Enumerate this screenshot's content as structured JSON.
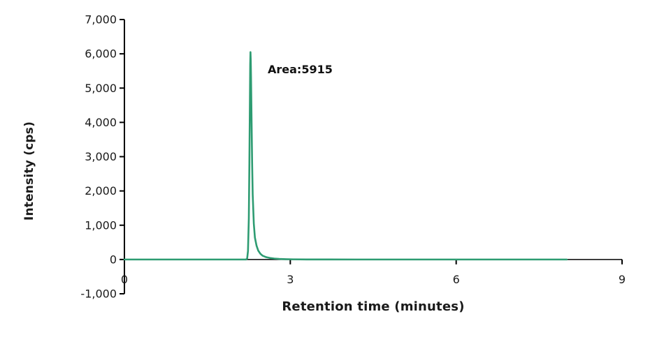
{
  "chart_data": {
    "type": "line",
    "title": "",
    "xlabel": "Retention time (minutes)",
    "ylabel": "Intensity (cps)",
    "xlim": [
      0,
      9
    ],
    "ylim": [
      -1000,
      7000
    ],
    "grid": false,
    "legend": null,
    "x_ticks": [
      0,
      3,
      6,
      9
    ],
    "x_tick_labels": [
      "0",
      "3",
      "6",
      "9"
    ],
    "y_ticks": [
      7000,
      6000,
      5000,
      4000,
      3000,
      2000,
      1000,
      0,
      -1000
    ],
    "y_tick_labels": [
      "7,000",
      "6,000",
      "5,000",
      "4,000",
      "3,000",
      "2,000",
      "1,000",
      "0",
      "-1,000"
    ],
    "axis_color": "#000000",
    "series": [
      {
        "name": "chromatogram-trace",
        "color": "#2E9C72",
        "x": [
          0,
          0.3,
          0.6,
          1.0,
          1.4,
          1.8,
          2.0,
          2.1,
          2.16,
          2.2,
          2.22,
          2.235,
          2.25,
          2.26,
          2.27,
          2.275,
          2.28,
          2.285,
          2.29,
          2.3,
          2.31,
          2.32,
          2.34,
          2.36,
          2.39,
          2.42,
          2.46,
          2.5,
          2.56,
          2.63,
          2.71,
          2.8,
          2.92,
          3.05,
          3.3,
          3.7,
          4.2,
          5.0,
          6.0,
          7.0,
          8.0
        ],
        "y": [
          0,
          0,
          0,
          0,
          0,
          0,
          0,
          0,
          0,
          0,
          30,
          250,
          1200,
          2800,
          4700,
          5700,
          6050,
          5800,
          5300,
          4000,
          2800,
          1900,
          1050,
          640,
          400,
          260,
          165,
          110,
          70,
          45,
          28,
          17,
          9,
          5,
          2,
          1,
          0,
          0,
          0,
          0,
          0
        ]
      }
    ],
    "peaks": [
      {
        "retention_time": 2.28,
        "apex_intensity_cps": 6050,
        "area": 5915
      }
    ],
    "annotations": [
      {
        "label": "Area:5915",
        "x": 2.6,
        "y": 5500
      }
    ]
  }
}
